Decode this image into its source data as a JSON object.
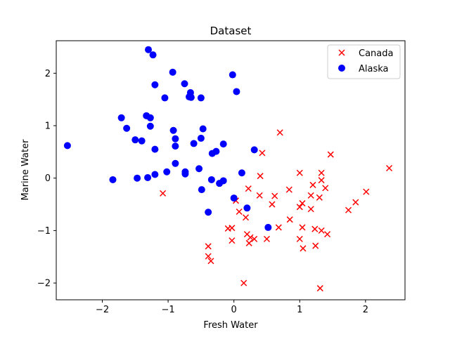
{
  "chart_data": {
    "type": "scatter",
    "title": "Dataset",
    "xlabel": "Fresh Water",
    "ylabel": "Marine Water",
    "xlim": [
      -2.7,
      2.6
    ],
    "ylim": [
      -2.32,
      2.62
    ],
    "xticks": [
      -2,
      -1,
      0,
      1,
      2
    ],
    "yticks": [
      -2,
      -1,
      0,
      1,
      2
    ],
    "grid": false,
    "legend": "top-right",
    "series": [
      {
        "name": "Canada",
        "marker": "x",
        "color": "#ff0000",
        "points": [
          [
            -1.08,
            -0.29
          ],
          [
            0.43,
            0.48
          ],
          [
            0.7,
            0.87
          ],
          [
            0.4,
            0.04
          ],
          [
            0.39,
            -0.33
          ],
          [
            0.22,
            -0.2
          ],
          [
            0.62,
            -0.34
          ],
          [
            0.58,
            -0.5
          ],
          [
            0.84,
            -0.22
          ],
          [
            1.0,
            0.1
          ],
          [
            1.2,
            -0.13
          ],
          [
            1.33,
            0.1
          ],
          [
            1.33,
            -0.04
          ],
          [
            1.39,
            -0.19
          ],
          [
            1.47,
            0.45
          ],
          [
            2.36,
            0.19
          ],
          [
            2.01,
            -0.26
          ],
          [
            1.85,
            -0.46
          ],
          [
            1.74,
            -0.61
          ],
          [
            1.3,
            -0.37
          ],
          [
            1.17,
            -0.33
          ],
          [
            1.04,
            -0.48
          ],
          [
            1.0,
            -0.55
          ],
          [
            1.17,
            -0.59
          ],
          [
            0.85,
            -0.79
          ],
          [
            0.68,
            -0.94
          ],
          [
            1.04,
            -0.94
          ],
          [
            1.23,
            -0.97
          ],
          [
            1.33,
            -1.0
          ],
          [
            1.42,
            -1.07
          ],
          [
            1.0,
            -1.16
          ],
          [
            1.24,
            -1.29
          ],
          [
            1.05,
            -1.34
          ],
          [
            0.5,
            -1.16
          ],
          [
            0.31,
            -1.16
          ],
          [
            0.25,
            -1.13
          ],
          [
            0.2,
            -1.07
          ],
          [
            0.23,
            -1.24
          ],
          [
            0.03,
            -0.43
          ],
          [
            0.08,
            -0.64
          ],
          [
            0.18,
            -0.75
          ],
          [
            -0.09,
            -0.96
          ],
          [
            -0.03,
            -0.95
          ],
          [
            -0.03,
            -1.19
          ],
          [
            -0.39,
            -1.3
          ],
          [
            -0.39,
            -1.49
          ],
          [
            -0.35,
            -1.58
          ],
          [
            0.15,
            -2.0
          ],
          [
            1.31,
            -2.1
          ]
        ]
      },
      {
        "name": "Alaska",
        "marker": "o",
        "color": "#0000ff",
        "points": [
          [
            -2.53,
            0.62
          ],
          [
            -1.84,
            -0.03
          ],
          [
            -1.71,
            1.15
          ],
          [
            -1.63,
            0.95
          ],
          [
            -1.5,
            0.73
          ],
          [
            -1.4,
            0.71
          ],
          [
            -1.33,
            1.19
          ],
          [
            -1.27,
            1.15
          ],
          [
            -1.27,
            0.99
          ],
          [
            -1.2,
            0.55
          ],
          [
            -1.2,
            0.07
          ],
          [
            -1.47,
            0.0
          ],
          [
            -1.31,
            0.01
          ],
          [
            -1.3,
            2.45
          ],
          [
            -1.23,
            2.35
          ],
          [
            -1.2,
            1.78
          ],
          [
            -1.05,
            1.53
          ],
          [
            -0.93,
            2.02
          ],
          [
            -0.75,
            1.8
          ],
          [
            -0.68,
            1.55
          ],
          [
            -0.66,
            1.63
          ],
          [
            -0.65,
            1.54
          ],
          [
            -0.5,
            1.53
          ],
          [
            -0.92,
            0.91
          ],
          [
            -0.89,
            0.75
          ],
          [
            -0.89,
            0.61
          ],
          [
            -0.89,
            0.28
          ],
          [
            -1.02,
            0.12
          ],
          [
            -0.74,
            0.12
          ],
          [
            -0.74,
            0.08
          ],
          [
            -0.61,
            0.66
          ],
          [
            -0.47,
            0.94
          ],
          [
            -0.5,
            0.76
          ],
          [
            -0.33,
            0.47
          ],
          [
            -0.27,
            0.51
          ],
          [
            -0.16,
            0.65
          ],
          [
            -0.53,
            0.18
          ],
          [
            -0.34,
            -0.03
          ],
          [
            -0.22,
            -0.1
          ],
          [
            -0.16,
            -0.05
          ],
          [
            -0.49,
            -0.22
          ],
          [
            -0.39,
            -0.65
          ],
          [
            -0.02,
            1.97
          ],
          [
            0.04,
            1.65
          ],
          [
            0.12,
            0.1
          ],
          [
            0.31,
            0.54
          ],
          [
            0.0,
            -0.38
          ],
          [
            0.2,
            -0.57
          ],
          [
            0.52,
            -0.94
          ]
        ]
      }
    ]
  }
}
